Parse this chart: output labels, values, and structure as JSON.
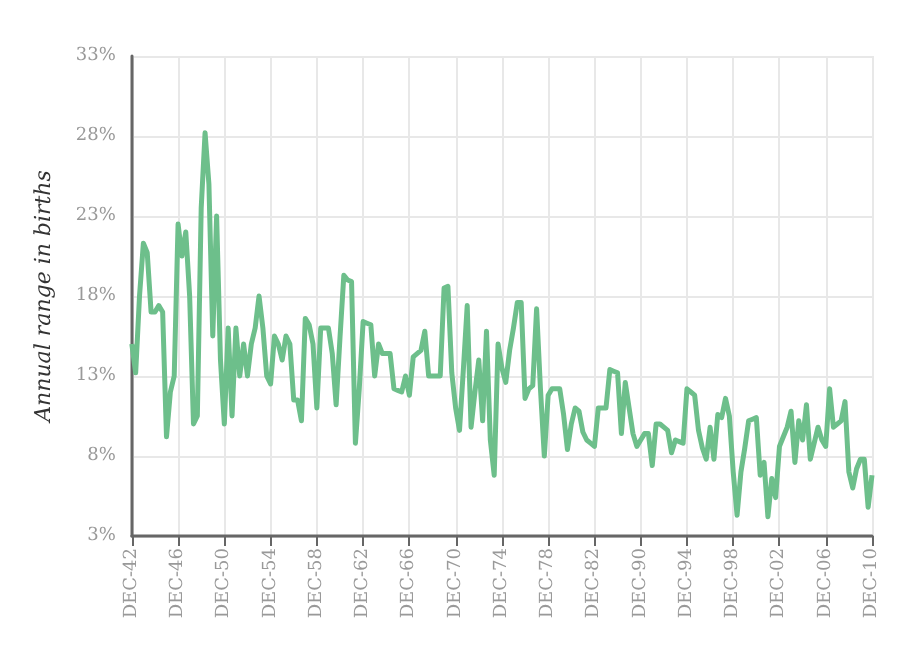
{
  "chart_data": {
    "type": "line",
    "ylabel": "Annual range in births",
    "categories": [
      "DEC-42",
      null,
      null,
      null,
      null,
      null,
      null,
      null,
      null,
      null,
      null,
      null,
      "DEC-46",
      null,
      null,
      null,
      null,
      null,
      null,
      null,
      null,
      null,
      null,
      null,
      "DEC-50",
      null,
      null,
      null,
      null,
      null,
      null,
      null,
      null,
      null,
      null,
      null,
      "DEC-54",
      null,
      null,
      null,
      null,
      null,
      null,
      null,
      null,
      null,
      null,
      null,
      "DEC-58",
      null,
      null,
      null,
      null,
      null,
      null,
      null,
      null,
      null,
      null,
      null,
      "DEC-62",
      null,
      null,
      null,
      null,
      null,
      null,
      null,
      null,
      null,
      null,
      null,
      "DEC-66",
      null,
      null,
      null,
      null,
      null,
      null,
      null,
      null,
      null,
      null,
      null,
      "DEC-70",
      null,
      null,
      null,
      null,
      null,
      null,
      null,
      null,
      null,
      null,
      null,
      "DEC-74",
      null,
      null,
      null,
      null,
      null,
      null,
      null,
      null,
      null,
      null,
      null,
      "DEC-78",
      null,
      null,
      null,
      null,
      null,
      null,
      null,
      null,
      null,
      null,
      null,
      "DEC-82",
      null,
      null,
      null,
      null,
      null,
      null,
      null,
      null,
      null,
      null,
      null,
      "DEC-90",
      null,
      null,
      null,
      null,
      null,
      null,
      null,
      null,
      null,
      null,
      null,
      "DEC-94",
      null,
      null,
      null,
      null,
      null,
      null,
      null,
      null,
      null,
      null,
      null,
      "DEC-98",
      null,
      null,
      null,
      null,
      null,
      null,
      null,
      null,
      null,
      null,
      null,
      "DEC-02",
      null,
      null,
      null,
      null,
      null,
      null,
      null,
      null,
      null,
      null,
      null,
      "DEC-06",
      null,
      null,
      null,
      null,
      null,
      null,
      null,
      null,
      null,
      null,
      null,
      "DEC-10"
    ],
    "series": [
      {
        "color": "#6dbf8b",
        "values": [
          15,
          13.2,
          18,
          21.3,
          20.7,
          17,
          17,
          17.4,
          17,
          9.2,
          12,
          13,
          22.5,
          20.5,
          22,
          18,
          10,
          10.5,
          23.5,
          28.2,
          25,
          15.5,
          23,
          14,
          10,
          16,
          10.5,
          16,
          13,
          15,
          13,
          15,
          16,
          18,
          16,
          13,
          12.5,
          15.5,
          15,
          14,
          15.5,
          15,
          11.5,
          11.5,
          10.2,
          16.6,
          16.2,
          15,
          11,
          16,
          16,
          16,
          14.4,
          11.2,
          15.4,
          19.3,
          19,
          18.9,
          8.8,
          12.2,
          16.4,
          16.3,
          16.2,
          13,
          15,
          14.4,
          14.4,
          14.4,
          12.2,
          12.1,
          12,
          13,
          11.8,
          14.2,
          14.4,
          14.6,
          15.8,
          13,
          13,
          13,
          13,
          18.5,
          18.6,
          13.2,
          11,
          9.6,
          13.4,
          17.4,
          9.8,
          12,
          14,
          10.2,
          15.8,
          9,
          6.8,
          15,
          13.5,
          12.6,
          14.6,
          16,
          17.6,
          17.6,
          11.6,
          12.2,
          12.4,
          17.2,
          12.2,
          8,
          11.8,
          12.2,
          12.2,
          12.2,
          10.6,
          8.4,
          10,
          11,
          10.8,
          9.5,
          9,
          8.8,
          8.6,
          11,
          11,
          11,
          13.4,
          13.3,
          13.2,
          9.4,
          12.6,
          11,
          9.4,
          8.6,
          9,
          9.4,
          9.4,
          7.4,
          10,
          10,
          9.8,
          9.6,
          8.2,
          9,
          8.9,
          8.8,
          12.2,
          12,
          11.8,
          9.6,
          8.5,
          7.8,
          9.8,
          7.8,
          10.6,
          10.4,
          11.6,
          10.5,
          7,
          4.3,
          7,
          8.5,
          10.2,
          10.3,
          10.4,
          6.8,
          7.6,
          4.2,
          6.6,
          5.4,
          8.6,
          9.2,
          9.8,
          10.8,
          7.6,
          10.2,
          9,
          11.2,
          7.8,
          8.8,
          9.8,
          9,
          8.6,
          12.2,
          9.8,
          10,
          10.2,
          11.4,
          7,
          6,
          7.2,
          7.8,
          7.8,
          4.8,
          6.8
        ]
      }
    ],
    "ylim": [
      3,
      33
    ],
    "yticks": [
      {
        "value": 3,
        "label": "3%"
      },
      {
        "value": 8,
        "label": "8%"
      },
      {
        "value": 13,
        "label": "13%"
      },
      {
        "value": 18,
        "label": "18%"
      },
      {
        "value": 23,
        "label": "23%"
      },
      {
        "value": 28,
        "label": "28%"
      },
      {
        "value": 33,
        "label": "33%"
      }
    ],
    "grid": true,
    "marker": "none",
    "line_style": "solid"
  }
}
